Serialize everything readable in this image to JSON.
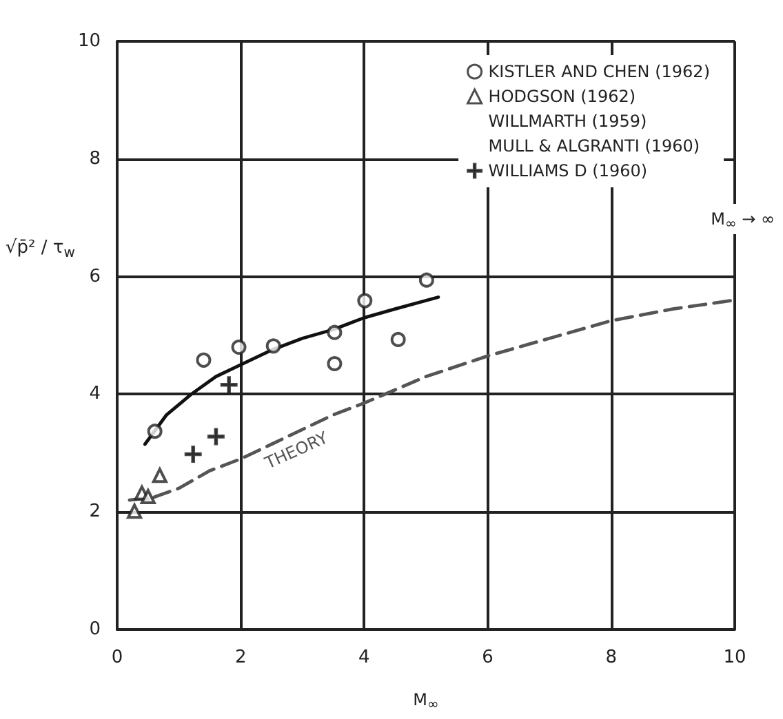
{
  "chart_data": {
    "type": "scatter",
    "xlabel": "M$_{∞}$",
    "ylabel": "√p̄² / τ$_{w}$",
    "xlim": [
      0,
      10
    ],
    "xticks": [
      0,
      2,
      4,
      6,
      8,
      10
    ],
    "ylim": [
      0,
      10
    ],
    "yticks": [
      0,
      2,
      4,
      6,
      8,
      10
    ],
    "grid": true,
    "legend": "top right",
    "series": [
      {
        "name": "KISTLER AND CHEN (1962)",
        "color": "#222222",
        "marker": "circle",
        "x": [
          0.61,
          1.4,
          1.97,
          2.53,
          3.52,
          3.52,
          4.01,
          4.55,
          5.01
        ],
        "values": [
          3.37,
          4.58,
          4.8,
          4.82,
          5.05,
          4.52,
          5.59,
          4.93,
          5.94
        ]
      },
      {
        "name": "HODGSON (1962)",
        "color": "#222222",
        "marker": "triangle",
        "x": [
          0.69,
          0.4,
          0.5,
          0.28
        ],
        "values": [
          2.62,
          2.32,
          2.26,
          2.01
        ]
      },
      {
        "name": "WILLMARTH (1959)",
        "color": "#222222",
        "marker": "none"
      },
      {
        "name": "MULL & ALGRANTI (1960)",
        "color": "#222222",
        "marker": "none"
      },
      {
        "name": "WILLIAMS D (1960)",
        "color": "#222222",
        "marker": "cross",
        "x": [
          1.81,
          1.23,
          1.6
        ],
        "values": [
          4.16,
          2.98,
          3.28
        ]
      },
      {
        "type": "line",
        "color": "#111111",
        "marker": "none",
        "line_style": "solid",
        "x": [
          0.45,
          0.8,
          1.2,
          1.6,
          2,
          2.5,
          3,
          3.5,
          4,
          4.5,
          5.2
        ],
        "values": [
          3.15,
          3.65,
          4,
          4.3,
          4.5,
          4.75,
          4.95,
          5.1,
          5.3,
          5.45,
          5.65
        ]
      },
      {
        "type": "line",
        "color": "#555555",
        "marker": "none",
        "line_style": "dashed",
        "x": [
          0.2,
          0.6,
          1,
          1.5,
          2,
          2.5,
          3,
          3.5,
          4,
          5,
          6,
          7,
          8,
          9,
          10
        ],
        "values": [
          2.2,
          2.25,
          2.4,
          2.7,
          2.9,
          3.15,
          3.4,
          3.65,
          3.85,
          4.3,
          4.65,
          4.95,
          5.25,
          5.45,
          5.6
        ]
      }
    ],
    "annotations": [
      "THEORY",
      "M$_{∞}$ → ∞"
    ]
  }
}
